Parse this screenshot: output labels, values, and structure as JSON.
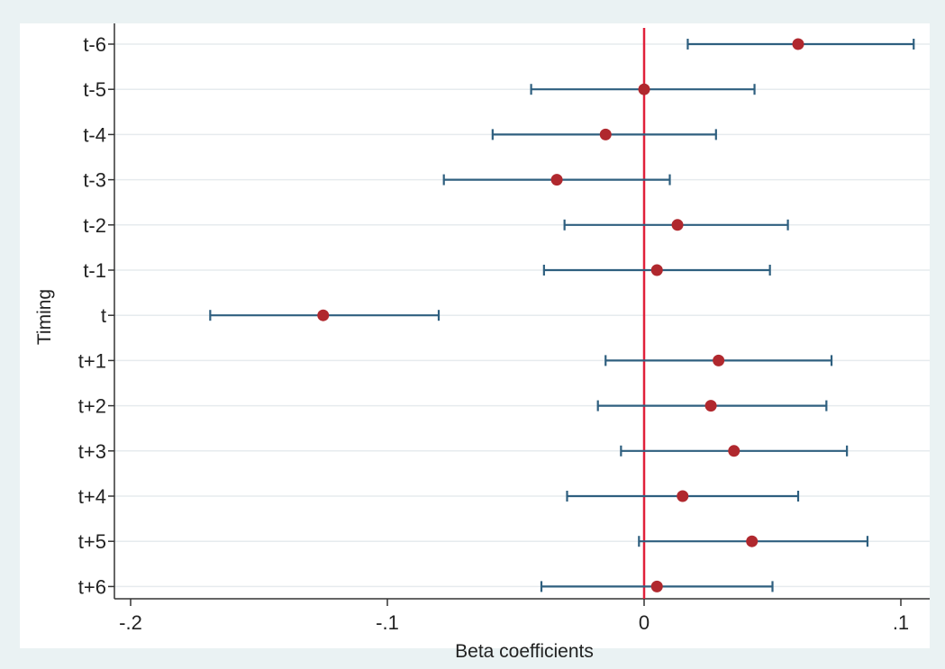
{
  "chart_data": {
    "type": "scatter",
    "subtype": "coefficient-plot-horizontal-error-bars",
    "xlabel": "Beta coefficients",
    "ylabel": "Timing",
    "xlim": [
      -0.2,
      0.11
    ],
    "x_ticks": [
      {
        "value": -0.2,
        "label": "-.2"
      },
      {
        "value": -0.1,
        "label": "-.1"
      },
      {
        "value": 0,
        "label": "0"
      },
      {
        "value": 0.1,
        "label": ".1"
      }
    ],
    "reference_line": {
      "axis": "x",
      "value": 0,
      "color": "#e0203a"
    },
    "grid": true,
    "colors": {
      "background": "#eaf2f3",
      "plot_background": "#ffffff",
      "point": "#b0282e",
      "error_bar": "#2e5f7f",
      "grid": "#e6ebee",
      "reference_line": "#e0203a"
    },
    "categories": [
      "t-6",
      "t-5",
      "t-4",
      "t-3",
      "t-2",
      "t-1",
      "t",
      "t+1",
      "t+2",
      "t+3",
      "t+4",
      "t+5",
      "t+6"
    ],
    "estimates": [
      0.06,
      0.0,
      -0.015,
      -0.034,
      0.013,
      0.005,
      -0.125,
      0.029,
      0.026,
      0.035,
      0.015,
      0.042,
      0.005
    ],
    "ci_low": [
      0.017,
      -0.044,
      -0.059,
      -0.078,
      -0.031,
      -0.039,
      -0.169,
      -0.015,
      -0.018,
      -0.009,
      -0.03,
      -0.002,
      -0.04
    ],
    "ci_high": [
      0.105,
      0.043,
      0.028,
      0.01,
      0.056,
      0.049,
      -0.08,
      0.073,
      0.071,
      0.079,
      0.06,
      0.087,
      0.05
    ]
  }
}
